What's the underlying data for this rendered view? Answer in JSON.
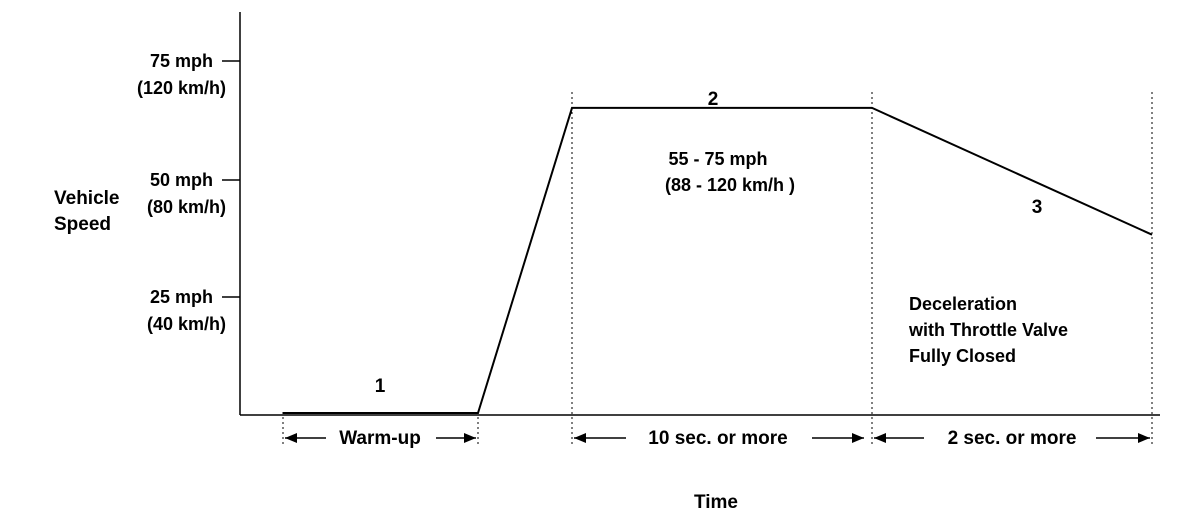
{
  "y_axis": {
    "label_line1": "Vehicle",
    "label_line2": "Speed"
  },
  "x_axis": {
    "label": "Time"
  },
  "ticks": [
    {
      "mph": "75 mph",
      "kmh": "(120 km/h)"
    },
    {
      "mph": "50 mph",
      "kmh": "(80 km/h)"
    },
    {
      "mph": "25 mph",
      "kmh": "(40 km/h)"
    }
  ],
  "segments": [
    {
      "number": "1"
    },
    {
      "number": "2",
      "range_line1": "55 - 75 mph",
      "range_line2": "(88 - 120 km/h )"
    },
    {
      "number": "3",
      "note_line1": "Deceleration",
      "note_line2": "with Throttle Valve",
      "note_line3": "Fully Closed"
    }
  ],
  "durations": [
    {
      "label": "Warm-up"
    },
    {
      "label": "10 sec. or more"
    },
    {
      "label": "2 sec. or more"
    }
  ],
  "speed_profile": {
    "warmup_mph": 0,
    "steady_mph": 65,
    "end_of_decel_mph": 38
  }
}
